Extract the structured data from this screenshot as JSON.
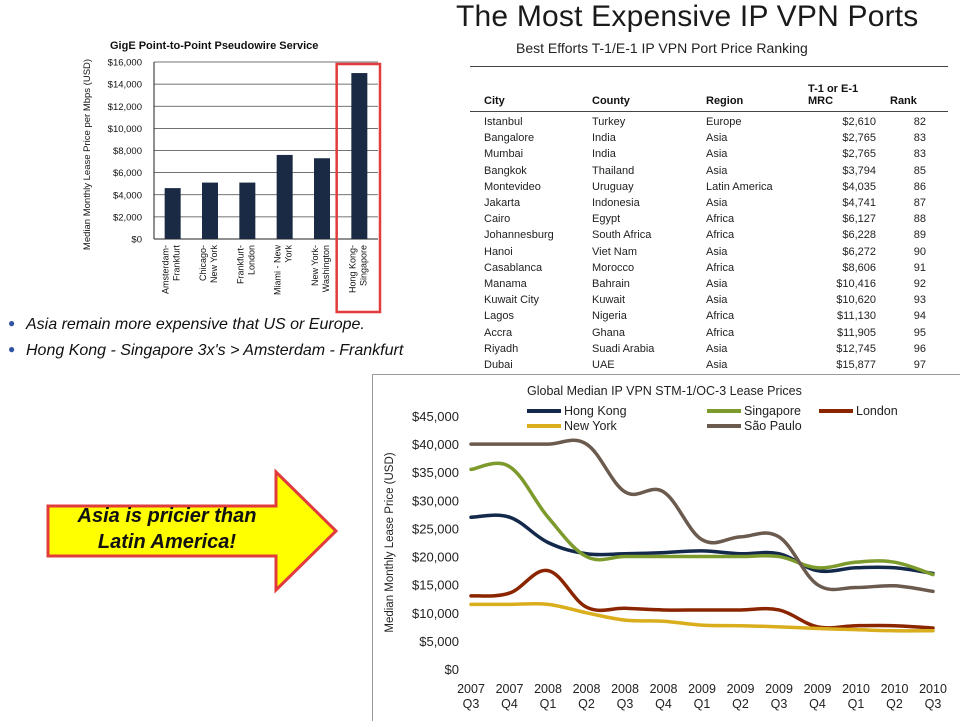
{
  "title": "The Most Expensive IP VPN Ports",
  "bullets": [
    "Asia remain more expensive that US or Europe.",
    "Hong Kong - Singapore 3x's > Amsterdam - Frankfurt"
  ],
  "callout": {
    "line1": "Asia is pricier than",
    "line2": "Latin America!"
  },
  "colors": {
    "bar": "#1a2a44",
    "highlight": "#e23b3b",
    "arrow_fill": "#ffff00",
    "arrow_border": "#e23b3b",
    "bullet": "#2f55a4"
  },
  "table": {
    "subtitle": "Best Efforts T-1/E-1 IP VPN Port Price Ranking",
    "headers": {
      "city": "City",
      "country": "County",
      "region": "Region",
      "mrc_top": "T-1 or E-1",
      "mrc_bottom": "MRC",
      "rank": "Rank"
    },
    "rows": [
      {
        "city": "Istanbul",
        "country": "Turkey",
        "region": "Europe",
        "mrc": "$2,610",
        "rank": "82"
      },
      {
        "city": "Bangalore",
        "country": "India",
        "region": "Asia",
        "mrc": "$2,765",
        "rank": "83"
      },
      {
        "city": "Mumbai",
        "country": "India",
        "region": "Asia",
        "mrc": "$2,765",
        "rank": "83"
      },
      {
        "city": "Bangkok",
        "country": "Thailand",
        "region": "Asia",
        "mrc": "$3,794",
        "rank": "85"
      },
      {
        "city": "Montevideo",
        "country": "Uruguay",
        "region": "Latin America",
        "mrc": "$4,035",
        "rank": "86"
      },
      {
        "city": "Jakarta",
        "country": "Indonesia",
        "region": "Asia",
        "mrc": "$4,741",
        "rank": "87"
      },
      {
        "city": "Cairo",
        "country": "Egypt",
        "region": "Africa",
        "mrc": "$6,127",
        "rank": "88"
      },
      {
        "city": "Johannesburg",
        "country": "South Africa",
        "region": "Africa",
        "mrc": "$6,228",
        "rank": "89"
      },
      {
        "city": "Hanoi",
        "country": "Viet Nam",
        "region": "Asia",
        "mrc": "$6,272",
        "rank": "90"
      },
      {
        "city": "Casablanca",
        "country": "Morocco",
        "region": "Africa",
        "mrc": "$8,606",
        "rank": "91"
      },
      {
        "city": "Manama",
        "country": "Bahrain",
        "region": "Asia",
        "mrc": "$10,416",
        "rank": "92"
      },
      {
        "city": "Kuwait City",
        "country": "Kuwait",
        "region": "Asia",
        "mrc": "$10,620",
        "rank": "93"
      },
      {
        "city": "Lagos",
        "country": "Nigeria",
        "region": "Africa",
        "mrc": "$11,130",
        "rank": "94"
      },
      {
        "city": "Accra",
        "country": "Ghana",
        "region": "Africa",
        "mrc": "$11,905",
        "rank": "95"
      },
      {
        "city": "Riyadh",
        "country": "Suadi Arabia",
        "region": "Asia",
        "mrc": "$12,745",
        "rank": "96"
      },
      {
        "city": "Dubai",
        "country": "UAE",
        "region": "Asia",
        "mrc": "$15,877",
        "rank": "97"
      }
    ]
  },
  "chart_data": [
    {
      "type": "bar",
      "title": "GigE Point-to-Point Pseudowire Service",
      "ylabel": "Median Monthly Lease Price per Mbps (USD)",
      "xlabel": "",
      "ylim": [
        0,
        16000
      ],
      "yticks": [
        0,
        2000,
        4000,
        6000,
        8000,
        10000,
        12000,
        14000,
        16000
      ],
      "ytick_labels": [
        "$0",
        "$2,000",
        "$4,000",
        "$6,000",
        "$8,000",
        "$10,000",
        "$12,000",
        "$14,000",
        "$16,000"
      ],
      "categories": [
        "Amsterdam-Frankfurt",
        "Chicago-New York",
        "Frankfurt-London",
        "Miami - New York",
        "New York-Washington",
        "Hong Kong-Singapore"
      ],
      "category_lines": [
        [
          "Amsterdam-",
          "Frankfurt"
        ],
        [
          "Chicago-",
          "New York"
        ],
        [
          "Frankfurt-",
          "London"
        ],
        [
          "Miami - New",
          "York"
        ],
        [
          "New York-",
          "Washington"
        ],
        [
          "Hong Kong-",
          "Singapore"
        ]
      ],
      "values": [
        4600,
        5100,
        5100,
        7600,
        7300,
        15000
      ],
      "highlight_index": 5,
      "grid": true
    },
    {
      "type": "line",
      "title": "Global Median IP VPN STM-1/OC-3 Lease Prices",
      "ylabel": "Median Monthly Lease Price (USD)",
      "xlabel": "",
      "ylim": [
        0,
        45000
      ],
      "yticks": [
        0,
        5000,
        10000,
        15000,
        20000,
        25000,
        30000,
        35000,
        40000,
        45000
      ],
      "ytick_labels": [
        "$0",
        "$5,000",
        "$10,000",
        "$15,000",
        "$20,000",
        "$25,000",
        "$30,000",
        "$35,000",
        "$40,000",
        "$45,000"
      ],
      "x_year": [
        "2007",
        "2007",
        "2008",
        "2008",
        "2008",
        "2008",
        "2009",
        "2009",
        "2009",
        "2009",
        "2010",
        "2010",
        "2010"
      ],
      "x_quarter": [
        "Q3",
        "Q4",
        "Q1",
        "Q2",
        "Q3",
        "Q4",
        "Q1",
        "Q2",
        "Q3",
        "Q4",
        "Q1",
        "Q2",
        "Q3"
      ],
      "legend_placement": "top",
      "grid": false,
      "series": [
        {
          "name": "Hong Kong",
          "color": "#13294b",
          "values": [
            27000,
            27000,
            22500,
            20500,
            20500,
            20700,
            21000,
            20500,
            20500,
            17500,
            18000,
            18000,
            17000
          ]
        },
        {
          "name": "Singapore",
          "color": "#7d9a2c",
          "values": [
            35500,
            36000,
            27000,
            20000,
            20000,
            20000,
            20000,
            20000,
            20000,
            18000,
            19000,
            19000,
            16800
          ]
        },
        {
          "name": "London",
          "color": "#8b2500",
          "values": [
            13000,
            13500,
            17500,
            11000,
            10800,
            10500,
            10500,
            10500,
            10500,
            7500,
            7700,
            7700,
            7300
          ]
        },
        {
          "name": "New York",
          "color": "#d9ad1c",
          "values": [
            11500,
            11500,
            11500,
            10000,
            8700,
            8500,
            7800,
            7700,
            7500,
            7200,
            7000,
            6800,
            6800
          ]
        },
        {
          "name": "São Paulo",
          "color": "#6b5a4e",
          "values": [
            40000,
            40000,
            40000,
            40000,
            31500,
            31500,
            23000,
            23500,
            23500,
            15000,
            14500,
            14800,
            13800
          ]
        }
      ]
    }
  ]
}
